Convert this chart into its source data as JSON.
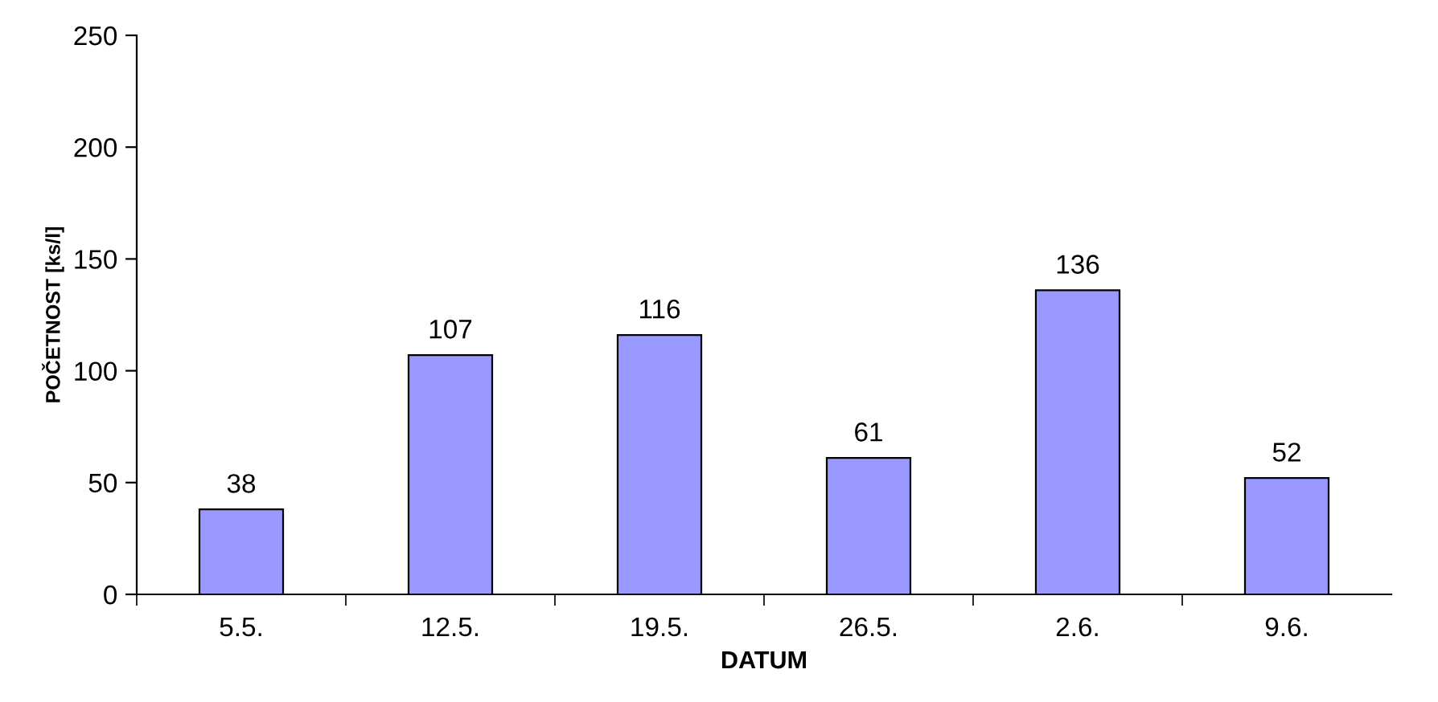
{
  "chart_data": {
    "type": "bar",
    "xlabel": "DATUM",
    "ylabel": "POČETNOST [ks/l]",
    "categories": [
      "5.5.",
      "12.5.",
      "19.5.",
      "26.5.",
      "2.6.",
      "9.6."
    ],
    "values": [
      38,
      107,
      116,
      61,
      136,
      52
    ],
    "color": "#9999ff",
    "ylim": [
      0,
      250
    ],
    "yticks": [
      0,
      50,
      100,
      150,
      200,
      250
    ],
    "grid": false,
    "data_labels": true,
    "legend": false
  }
}
